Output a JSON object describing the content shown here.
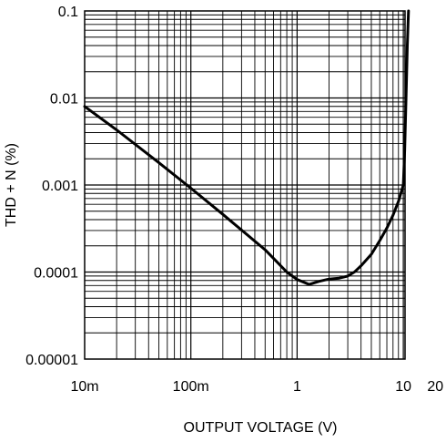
{
  "chart_data": {
    "type": "line",
    "title": "",
    "xlabel": "OUTPUT VOLTAGE (V)",
    "ylabel": "THD + N (%)",
    "x_scale": "log",
    "y_scale": "log",
    "xlim": [
      0.01,
      20
    ],
    "ylim": [
      1e-05,
      0.1
    ],
    "grid": true,
    "x_ticks": [
      {
        "value": 0.01,
        "label": "10m"
      },
      {
        "value": 0.1,
        "label": "100m"
      },
      {
        "value": 1,
        "label": "1"
      },
      {
        "value": 10,
        "label": "10"
      },
      {
        "value": 20,
        "label": "20"
      }
    ],
    "y_ticks": [
      {
        "value": 0.1,
        "label": "0.1"
      },
      {
        "value": 0.01,
        "label": "0.01"
      },
      {
        "value": 0.001,
        "label": "0.001"
      },
      {
        "value": 0.0001,
        "label": "0.0001"
      },
      {
        "value": 1e-05,
        "label": "0.00001"
      }
    ],
    "series": [
      {
        "x": [
          0.01,
          0.02,
          0.05,
          0.1,
          0.2,
          0.5,
          0.8,
          1.0,
          1.3,
          1.6,
          2.0,
          2.5,
          3.0,
          3.5,
          4.0,
          5.0,
          6.0,
          7.0,
          8.0,
          9.0,
          10.0,
          10.3,
          10.6,
          10.9,
          11.2
        ],
        "y": [
          0.008,
          0.0043,
          0.0018,
          0.00092,
          0.00046,
          0.00018,
          0.0001,
          8.2e-05,
          7.2e-05,
          7.8e-05,
          8.3e-05,
          8.5e-05,
          9e-05,
          0.000101,
          0.000118,
          0.00016,
          0.00023,
          0.00032,
          0.00045,
          0.00065,
          0.001,
          0.0025,
          0.01,
          0.04,
          0.1
        ]
      }
    ]
  }
}
